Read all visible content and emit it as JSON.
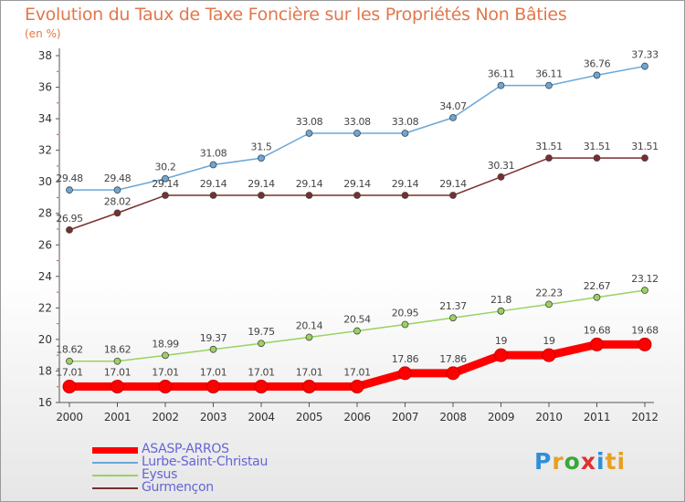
{
  "header": {
    "title": "Evolution du Taux de Taxe Foncière sur les Propriétés Non Bâties",
    "subtitle": "(en %)"
  },
  "logo": {
    "text": "Proxiti",
    "letters": [
      "P",
      "r",
      "o",
      "x",
      "i",
      "ti"
    ]
  },
  "chart_data": {
    "type": "line",
    "x": [
      "2000",
      "2001",
      "2002",
      "2003",
      "2004",
      "2005",
      "2006",
      "2007",
      "2008",
      "2009",
      "2010",
      "2011",
      "2012"
    ],
    "ylim": [
      16,
      38
    ],
    "yticks": [
      16,
      18,
      20,
      22,
      24,
      26,
      28,
      30,
      32,
      34,
      36,
      38
    ],
    "grid": false,
    "legend_position": "bottom-left",
    "series": [
      {
        "name": "ASASP-ARROS",
        "color": "#ff0000",
        "emphasis": true,
        "values": [
          17.01,
          17.01,
          17.01,
          17.01,
          17.01,
          17.01,
          17.01,
          17.86,
          17.86,
          19,
          19,
          19.68,
          19.68
        ]
      },
      {
        "name": "Lurbe-Saint-Christau",
        "color": "#6aa7d8",
        "emphasis": false,
        "values": [
          29.48,
          29.48,
          30.2,
          31.08,
          31.5,
          33.08,
          33.08,
          33.08,
          34.07,
          36.11,
          36.11,
          36.76,
          37.33
        ]
      },
      {
        "name": "Eysus",
        "color": "#9ad260",
        "emphasis": false,
        "values": [
          18.62,
          18.62,
          18.99,
          19.37,
          19.75,
          20.14,
          20.54,
          20.95,
          21.37,
          21.8,
          22.23,
          22.67,
          23.12
        ]
      },
      {
        "name": "Gurmençon",
        "color": "#7a2e2e",
        "emphasis": false,
        "values": [
          26.95,
          28.02,
          29.14,
          29.14,
          29.14,
          29.14,
          29.14,
          29.14,
          29.14,
          30.31,
          31.51,
          31.51,
          31.51
        ]
      }
    ]
  }
}
